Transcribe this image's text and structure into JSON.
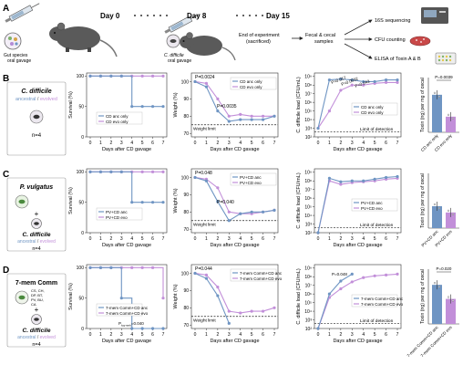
{
  "panel_a": {
    "letter": "A",
    "day0": "Day 0",
    "day8": "Day 8",
    "day15": "Day 15",
    "gavage1": [
      "Gut species",
      "oral gavage"
    ],
    "gavage2": [
      "C. difficile",
      "oral gavage"
    ],
    "end_text": [
      "End of experiment",
      "(sacrificed)"
    ],
    "samples_text": [
      "Fecal & cecal",
      "samples"
    ],
    "out1": "16S sequencing",
    "out2": "CFU counting",
    "out3": "ELISA of Toxin A & B"
  },
  "common": {
    "x_label": "Days after CD gavage",
    "survival_label": "Survival (%)",
    "weight_label": "Weight (%)",
    "load_label": "C. difficile load (CFU/mL)",
    "toxin_label": "Toxin (ng) per mg of cecal",
    "weight_limit": "Weight limit",
    "detection_limit": "Limit of detection",
    "x_ticks": [
      "0",
      "1",
      "2",
      "3",
      "4",
      "5",
      "6",
      "7"
    ],
    "surv_ticks": [
      "100",
      "50",
      "0"
    ],
    "weight_ticks": [
      "100",
      "90",
      "80",
      "70"
    ],
    "load_ticks": [
      "10⁹",
      "10⁸",
      "10⁷",
      "10⁶",
      "10⁵",
      "10⁴",
      "10³",
      "10²"
    ]
  },
  "colors": {
    "anc": "#6f95c3",
    "evo": "#c28fd9"
  },
  "rows": [
    {
      "letter": "B",
      "species": "C. difficile",
      "plus_species": "",
      "ancevo_a": "ancestral",
      "ancevo_sep": " / ",
      "ancevo_b": "evolved",
      "n": "n=4",
      "legend_anc": "CD anc only",
      "legend_evo": "CD evo only",
      "surv_p": "",
      "weight_p": [
        "P=0.0024",
        "P=0.0035"
      ],
      "load_p": [
        "P=0.017",
        "P=0.0032",
        "P=0.043"
      ],
      "toxin_p": "P=0.0039",
      "bar_labels": [
        "CD anc only",
        "CD evo only"
      ],
      "members": []
    },
    {
      "letter": "C",
      "species": "P. vulgatus",
      "plus_species": "C. difficile",
      "ancevo_a": "ancestral",
      "ancevo_sep": " / ",
      "ancevo_b": "evolved",
      "n": "n=4",
      "legend_anc": "PV+CD anc",
      "legend_evo": "PV+CD evo",
      "surv_p": "",
      "weight_p": [
        "P=0.048",
        "P=0.040"
      ],
      "load_p": [],
      "toxin_p": "",
      "bar_labels": [
        "PV+CD anc",
        "PV+CD evo"
      ],
      "members": []
    },
    {
      "letter": "D",
      "species": "7-mem Comm",
      "plus_species": "C. difficile",
      "ancevo_a": "ancestral",
      "ancevo_sep": " / ",
      "ancevo_b": "evolved",
      "n": "n=4",
      "legend_anc": "7-mem Comm+CD anc",
      "legend_evo": "7-mem Comm+CD evo",
      "surv_p": "P",
      "surv_p_sub": "log-rank",
      "surv_p_val": "=0.040",
      "weight_p": [
        "P=0.044"
      ],
      "load_p": [
        "P=0.048"
      ],
      "toxin_p": "P=0.020",
      "bar_labels": [
        "7-mem Comm+CD anc",
        "7-mem Comm+CD evo"
      ],
      "members": [
        "CS, CH,",
        "DP, BT,",
        "PV, BU,",
        "CA"
      ]
    }
  ],
  "chart_data": [
    {
      "type": "line",
      "name": "B-survival",
      "x": [
        0,
        1,
        2,
        3,
        4,
        5,
        6,
        7
      ],
      "series": [
        {
          "name": "CD anc only",
          "values": [
            100,
            100,
            100,
            100,
            50,
            50,
            50,
            50
          ]
        },
        {
          "name": "CD evo only",
          "values": [
            100,
            100,
            100,
            100,
            100,
            100,
            100,
            100
          ]
        }
      ],
      "ylim": [
        0,
        100
      ]
    },
    {
      "type": "line",
      "name": "B-weight",
      "x": [
        0,
        1,
        2,
        3,
        4,
        5,
        6,
        7
      ],
      "series": [
        {
          "name": "CD anc only",
          "values": [
            100,
            97,
            83,
            77,
            78,
            78,
            78,
            80
          ]
        },
        {
          "name": "CD evo only",
          "values": [
            100,
            99,
            90,
            80,
            81,
            80,
            80,
            80
          ]
        }
      ],
      "ylim": [
        70,
        105
      ]
    },
    {
      "type": "line",
      "name": "B-load",
      "x": [
        0,
        1,
        2,
        3,
        4,
        5,
        6,
        7
      ],
      "series": [
        {
          "name": "CD anc only",
          "values": [
            3,
            8.6,
            8.7,
            8.6,
            8.4,
            8.4,
            8.6,
            8.6
          ]
        },
        {
          "name": "CD evo only",
          "values": [
            3,
            5,
            7.4,
            8.0,
            8.0,
            8.2,
            8.3,
            8.3
          ]
        }
      ],
      "ylim": [
        2,
        9
      ]
    },
    {
      "type": "bar",
      "name": "B-toxin",
      "categories": [
        "CD anc only",
        "CD evo only"
      ],
      "values": [
        2.4,
        1.0
      ],
      "ylim": [
        0,
        3.5
      ]
    },
    {
      "type": "line",
      "name": "C-survival",
      "x": [
        0,
        1,
        2,
        3,
        4,
        5,
        6,
        7
      ],
      "series": [
        {
          "name": "PV+CD anc",
          "values": [
            100,
            100,
            100,
            100,
            50,
            50,
            50,
            50
          ]
        },
        {
          "name": "PV+CD evo",
          "values": [
            100,
            100,
            100,
            100,
            100,
            100,
            100,
            100
          ]
        }
      ],
      "ylim": [
        0,
        100
      ]
    },
    {
      "type": "line",
      "name": "C-weight",
      "x": [
        0,
        1,
        2,
        3,
        4,
        5,
        6,
        7
      ],
      "series": [
        {
          "name": "PV+CD anc",
          "values": [
            100,
            98,
            86,
            75,
            79,
            80,
            80,
            81
          ]
        },
        {
          "name": "PV+CD evo",
          "values": [
            100,
            99,
            94,
            80,
            79,
            79,
            80,
            81
          ]
        }
      ],
      "ylim": [
        70,
        105
      ]
    },
    {
      "type": "line",
      "name": "C-load",
      "x": [
        0,
        1,
        2,
        3,
        4,
        5,
        6,
        7
      ],
      "series": [
        {
          "name": "PV+CD anc",
          "values": [
            2,
            8.3,
            7.9,
            8.0,
            8.0,
            8.2,
            8.4,
            8.5
          ]
        },
        {
          "name": "PV+CD evo",
          "values": [
            2,
            8.0,
            7.6,
            7.8,
            7.9,
            8.0,
            8.2,
            8.3
          ]
        }
      ],
      "ylim": [
        2,
        9
      ]
    },
    {
      "type": "bar",
      "name": "C-toxin",
      "categories": [
        "PV+CD anc",
        "PV+CD evo"
      ],
      "values": [
        1.4,
        1.0
      ],
      "ylim": [
        0,
        3.5
      ]
    },
    {
      "type": "line",
      "name": "D-survival",
      "x": [
        0,
        1,
        2,
        3,
        4,
        5,
        6,
        7
      ],
      "series": [
        {
          "name": "7-mem Comm+CD anc",
          "values": [
            100,
            100,
            100,
            50,
            0,
            0,
            0,
            0
          ]
        },
        {
          "name": "7-mem Comm+CD evo",
          "values": [
            100,
            100,
            100,
            100,
            100,
            100,
            100,
            50
          ]
        }
      ],
      "ylim": [
        0,
        100
      ]
    },
    {
      "type": "line",
      "name": "D-weight",
      "x": [
        0,
        1,
        2,
        3,
        4,
        5,
        6,
        7
      ],
      "series": [
        {
          "name": "7-mem Comm+CD anc",
          "values": [
            100,
            97,
            87,
            71,
            null,
            null,
            null,
            null
          ]
        },
        {
          "name": "7-mem Comm+CD evo",
          "values": [
            100,
            99,
            92,
            78,
            77,
            78,
            78,
            80
          ]
        }
      ],
      "ylim": [
        70,
        105
      ]
    },
    {
      "type": "line",
      "name": "D-load",
      "x": [
        0,
        1,
        2,
        3,
        4,
        5,
        6,
        7
      ],
      "series": [
        {
          "name": "7-mem Comm+CD anc",
          "values": [
            2,
            6.0,
            7.5,
            8.3,
            null,
            null,
            null,
            null
          ]
        },
        {
          "name": "7-mem Comm+CD evo",
          "values": [
            2,
            5.6,
            6.6,
            7.4,
            7.9,
            8.1,
            8.2,
            8.3
          ]
        }
      ],
      "ylim": [
        2,
        9
      ]
    },
    {
      "type": "bar",
      "name": "D-toxin",
      "categories": [
        "7-mem Comm+CD anc",
        "7-mem Comm+CD evo"
      ],
      "values": [
        2.5,
        1.6
      ],
      "ylim": [
        0,
        3.5
      ]
    }
  ]
}
